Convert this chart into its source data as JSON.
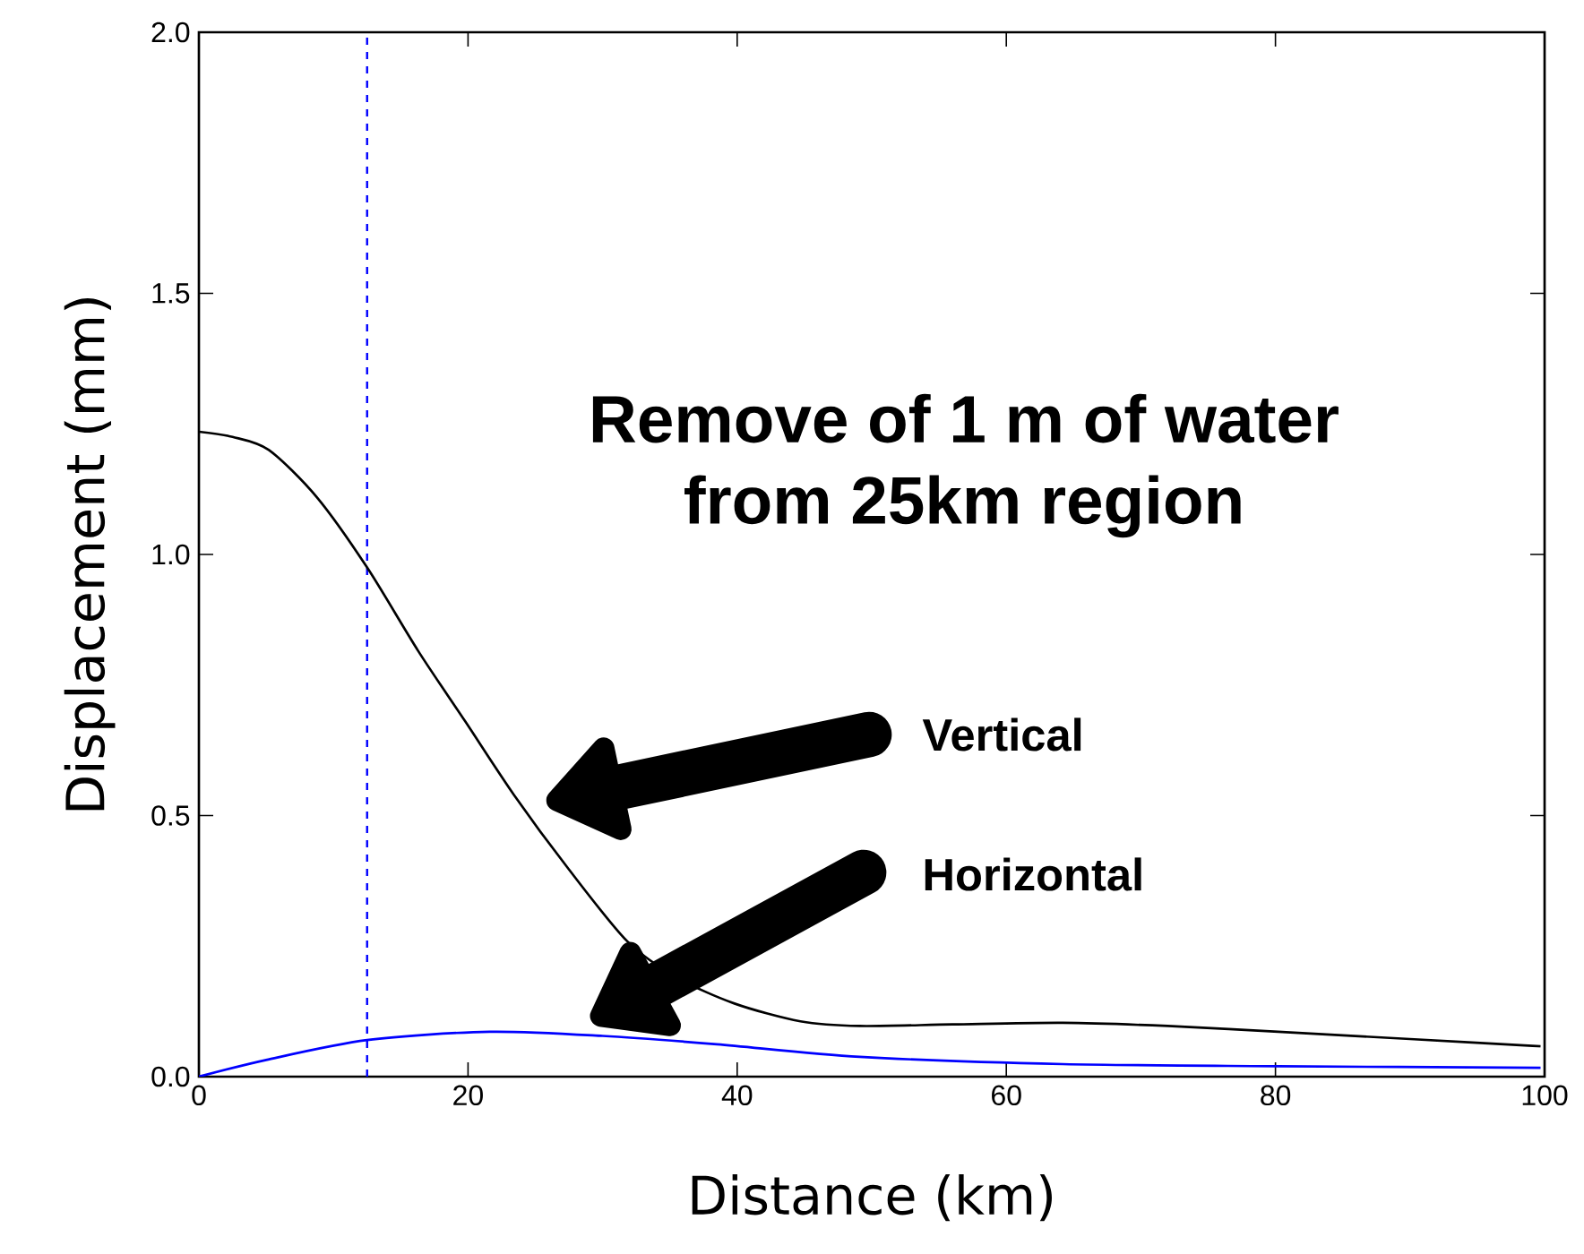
{
  "chart_data": {
    "type": "line",
    "xlabel": "Distance (km)",
    "ylabel": "Displacement (mm)",
    "xlim": [
      0,
      100
    ],
    "ylim": [
      0,
      2
    ],
    "xticks": [
      0,
      20,
      40,
      60,
      80,
      100
    ],
    "yticks": [
      {
        "value": 0,
        "label": "0.0"
      },
      {
        "value": 0.5,
        "label": "0.5"
      },
      {
        "value": 1,
        "label": "1.0"
      },
      {
        "value": 1.5,
        "label": "1.5"
      },
      {
        "value": 2,
        "label": "2.0"
      }
    ],
    "grid": false,
    "marker": "none",
    "line_style": "solid",
    "annotations": [
      "Remove of 1 m of water from 25km region",
      "Vertical",
      "Horizontal"
    ],
    "ref_lines": [
      {
        "axis": "x",
        "value": 12.5,
        "color": "#0000ff",
        "line_style": "dashed"
      }
    ],
    "series": [
      {
        "color": "#000000",
        "x": [
          0,
          2.5,
          5.2,
          8.75,
          12.5,
          16.3,
          19.8,
          23.4,
          27.4,
          31.8,
          35.5,
          39.8,
          44.7,
          49.1,
          56,
          64.2,
          72,
          80.2,
          90,
          99.7
        ],
        "values": [
          1.235,
          1.225,
          1.2,
          1.11,
          0.975,
          0.815,
          0.68,
          0.54,
          0.4,
          0.26,
          0.19,
          0.14,
          0.106,
          0.097,
          0.1,
          0.103,
          0.097,
          0.086,
          0.072,
          0.058
        ]
      },
      {
        "color": "#0000ff",
        "x": [
          0,
          5,
          12.5,
          21.6,
          30,
          38.5,
          49.1,
          64.2,
          80.2,
          99.7
        ],
        "values": [
          0,
          0.032,
          0.07,
          0.086,
          0.078,
          0.062,
          0.038,
          0.024,
          0.02,
          0.017
        ]
      }
    ]
  }
}
